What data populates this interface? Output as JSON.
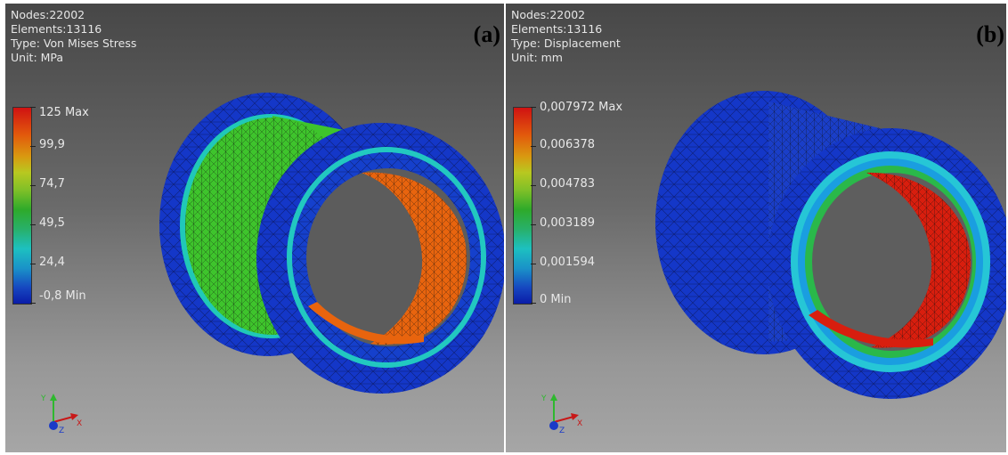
{
  "panels": [
    {
      "tag": "(a)",
      "info": {
        "nodes": "Nodes:22002",
        "elements": "Elements:13116",
        "type": "Type: Von Mises Stress",
        "unit": "Unit: MPa"
      },
      "legend": [
        "125 Max",
        "99,9",
        "74,7",
        "49,5",
        "24,4",
        "-0,8 Min"
      ]
    },
    {
      "tag": "(b)",
      "info": {
        "nodes": "Nodes:22002",
        "elements": "Elements:13116",
        "type": "Type: Displacement",
        "unit": "Unit: mm"
      },
      "legend": [
        "0,007972 Max",
        "0,006378",
        "0,004783",
        "0,003189",
        "0,001594",
        "0 Min"
      ]
    }
  ],
  "axis_labels": {
    "x": "X",
    "y": "Y",
    "z": "Z"
  },
  "colors": {
    "mesh_blue": "#1437c8",
    "stress_inner": "#e8640e",
    "stress_shell": "#3ec42c",
    "disp_inner": "#d81e0e",
    "ring_glow": "#20c8c0"
  }
}
